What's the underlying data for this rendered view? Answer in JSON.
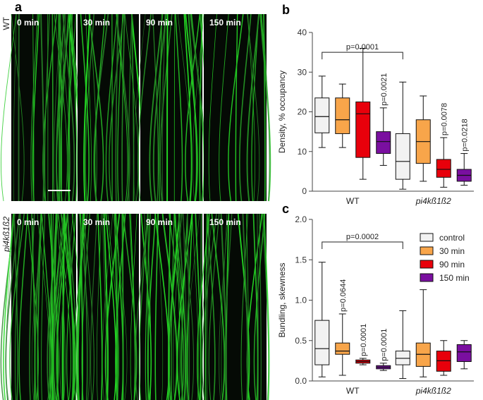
{
  "panel_letters": [
    "a",
    "b",
    "c"
  ],
  "micrographs": {
    "rows": [
      {
        "label": "WT",
        "times": [
          "0 min",
          "30 min",
          "90 min",
          "150 min"
        ]
      },
      {
        "label": "pi4kß1ß2",
        "times": [
          "0 min",
          "30 min",
          "90 min",
          "150 min"
        ]
      }
    ]
  },
  "chart_data": [
    {
      "type": "box",
      "ylabel": "Density, % occupancy",
      "categories": [
        "WT",
        "pi4kß1ß2"
      ],
      "ylim": [
        0,
        40
      ],
      "yticks": [
        0,
        10,
        20,
        30,
        40
      ],
      "series": [
        {
          "name": "control",
          "color": "#f2f2f2",
          "values": [
            {
              "min": 11,
              "q1": 14.7,
              "median": 18.8,
              "q3": 23.5,
              "max": 29
            },
            {
              "min": 0.5,
              "q1": 3,
              "median": 7.5,
              "q3": 14.5,
              "max": 27.5
            }
          ]
        },
        {
          "name": "30 min",
          "color": "#f8a54a",
          "values": [
            {
              "min": 11,
              "q1": 14.5,
              "median": 18,
              "q3": 23.5,
              "max": 27
            },
            {
              "min": 2.5,
              "q1": 7,
              "median": 12.5,
              "q3": 18,
              "max": 24
            }
          ]
        },
        {
          "name": "90 min",
          "color": "#e8000b",
          "values": [
            {
              "min": 3,
              "q1": 8.5,
              "median": 19.5,
              "q3": 22.5,
              "max": 36
            },
            {
              "min": 1,
              "q1": 3.5,
              "median": 5.5,
              "q3": 8,
              "max": 13.5
            }
          ],
          "value_labels": [
            null,
            "p=0.0078"
          ]
        },
        {
          "name": "150 min",
          "color": "#7a0fa0",
          "values": [
            {
              "min": 6.5,
              "q1": 9.5,
              "median": 12.5,
              "q3": 15,
              "max": 21
            },
            {
              "min": 1.5,
              "q1": 2.5,
              "median": 4,
              "q3": 5.5,
              "max": 9.5
            }
          ],
          "value_labels": [
            "p=0.0021",
            "p=0.0218"
          ]
        }
      ],
      "comparison": {
        "label": "p=0.0001",
        "y": 35
      }
    },
    {
      "type": "box",
      "ylabel": "Bundling, skewness",
      "categories": [
        "WT",
        "pi4kß1ß2"
      ],
      "ylim": [
        0,
        2
      ],
      "yticks": [
        {
          "value": 0,
          "label": "0.0"
        },
        {
          "value": 0.5,
          "label": "0.5"
        },
        {
          "value": 1,
          "label": "1.0"
        },
        {
          "value": 1.5,
          "label": "1.5"
        },
        {
          "value": 2,
          "label": "2.0"
        }
      ],
      "legend": "top-right",
      "series": [
        {
          "name": "control",
          "color": "#f2f2f2",
          "values": [
            {
              "min": 0.05,
              "q1": 0.2,
              "median": 0.4,
              "q3": 0.75,
              "max": 1.47
            },
            {
              "min": 0.03,
              "q1": 0.2,
              "median": 0.28,
              "q3": 0.37,
              "max": 0.87
            }
          ]
        },
        {
          "name": "30 min",
          "color": "#f8a54a",
          "values": [
            {
              "min": 0.07,
              "q1": 0.33,
              "median": 0.37,
              "q3": 0.47,
              "max": 0.83
            },
            {
              "min": 0.05,
              "q1": 0.18,
              "median": 0.33,
              "q3": 0.47,
              "max": 1.13
            }
          ],
          "value_labels": [
            "p=0.0644",
            null
          ]
        },
        {
          "name": "90 min",
          "color": "#e8000b",
          "values": [
            {
              "min": 0.2,
              "q1": 0.22,
              "median": 0.24,
              "q3": 0.26,
              "max": 0.28
            },
            {
              "min": 0.07,
              "q1": 0.12,
              "median": 0.25,
              "q3": 0.37,
              "max": 0.5
            }
          ],
          "value_labels": [
            "p=0.0001",
            null
          ]
        },
        {
          "name": "150 min",
          "color": "#7a0fa0",
          "values": [
            {
              "min": 0.13,
              "q1": 0.15,
              "median": 0.17,
              "q3": 0.19,
              "max": 0.22
            },
            {
              "min": 0.15,
              "q1": 0.24,
              "median": 0.36,
              "q3": 0.45,
              "max": 0.5
            }
          ],
          "value_labels": [
            "p=0.0001",
            null
          ]
        }
      ],
      "comparison": {
        "label": "p=0.0002",
        "y": 1.72
      }
    }
  ]
}
